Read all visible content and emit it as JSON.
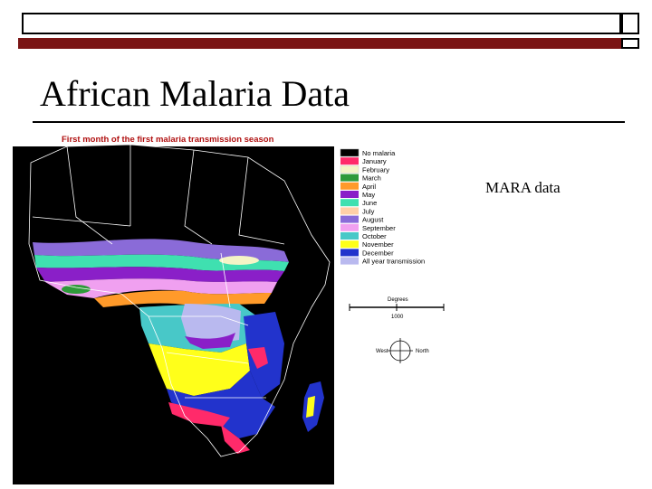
{
  "slide": {
    "title": "African Malaria Data",
    "caption": "MARA data"
  },
  "map": {
    "title": "First month of the first malaria transmission season",
    "legend": [
      {
        "label": "No malaria",
        "color": "#000000"
      },
      {
        "label": "January",
        "color": "#ff2a6a"
      },
      {
        "label": "February",
        "color": "#f4f4c6"
      },
      {
        "label": "March",
        "color": "#2e9a3a"
      },
      {
        "label": "April",
        "color": "#ff9a2a"
      },
      {
        "label": "May",
        "color": "#8a1fc8"
      },
      {
        "label": "June",
        "color": "#3fe0b0"
      },
      {
        "label": "July",
        "color": "#ffd0a8"
      },
      {
        "label": "August",
        "color": "#8a6bd8"
      },
      {
        "label": "September",
        "color": "#f0a0f0"
      },
      {
        "label": "October",
        "color": "#48c8c8"
      },
      {
        "label": "November",
        "color": "#ffff1a"
      },
      {
        "label": "December",
        "color": "#2233cc"
      },
      {
        "label": "All year transmission",
        "color": "#b9b9ef"
      }
    ],
    "scale_label": "Degrees",
    "scale_value": "1000",
    "compass_west": "West",
    "compass_north": "North",
    "colors": {
      "frame": "#000000",
      "land_north": "#000000",
      "border": "#ffffff",
      "title": "#b01010"
    }
  }
}
